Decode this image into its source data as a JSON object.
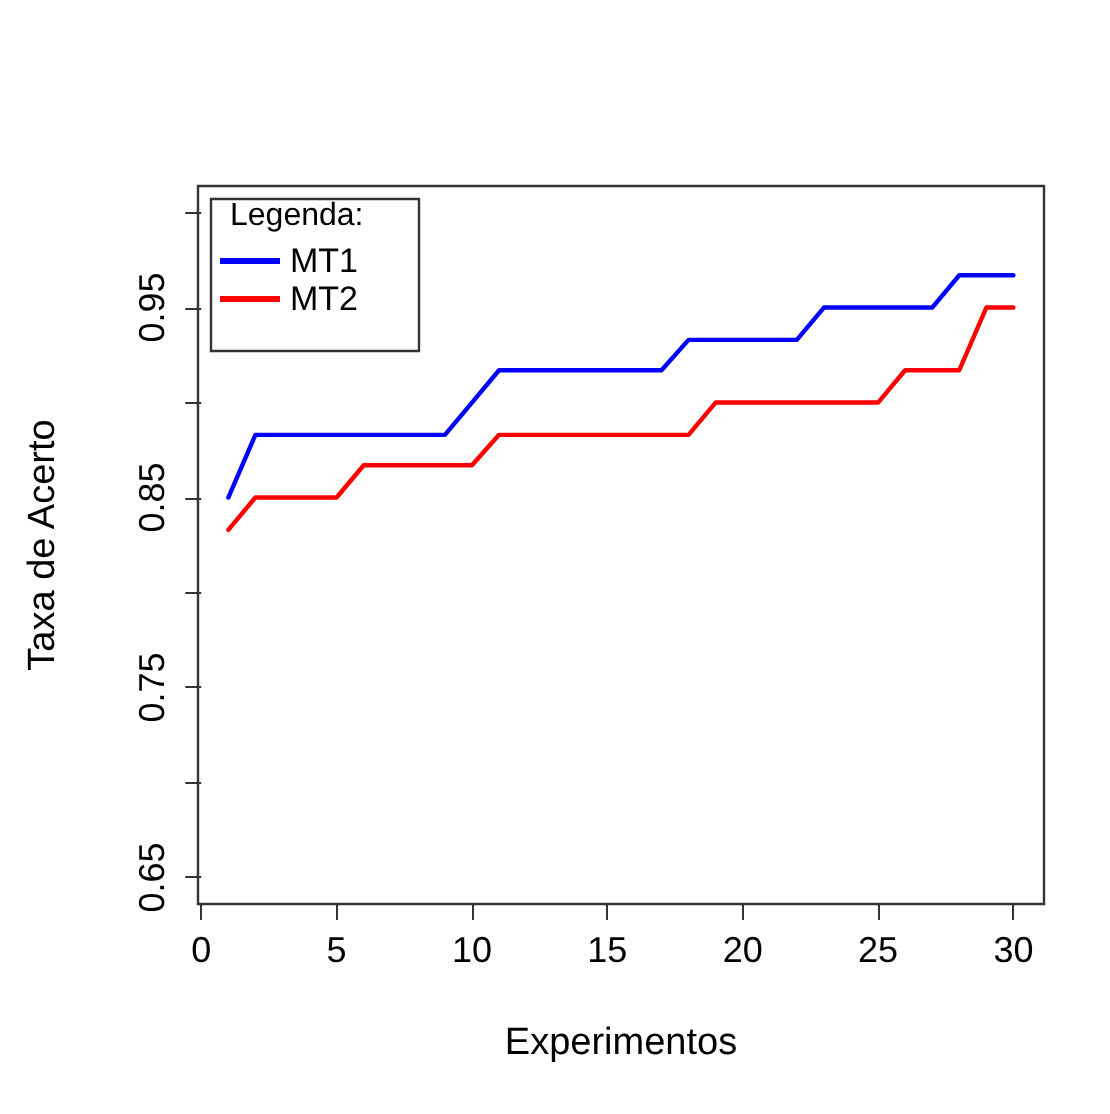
{
  "chart_data": {
    "type": "line",
    "xlabel": "Experimentos",
    "ylabel": "Taxa de Acerto",
    "legend_title": "Legenda:",
    "legend": "top left",
    "grid": false,
    "marker": "none",
    "line_style": "solid",
    "x": [
      1,
      2,
      3,
      4,
      5,
      6,
      7,
      8,
      9,
      10,
      11,
      12,
      13,
      14,
      15,
      16,
      17,
      18,
      19,
      20,
      21,
      22,
      23,
      24,
      25,
      26,
      27,
      28,
      29,
      30
    ],
    "series": [
      {
        "name": "MT1",
        "color": "#0000ff",
        "values": [
          0.85,
          0.883,
          0.883,
          0.883,
          0.883,
          0.883,
          0.883,
          0.883,
          0.883,
          0.9,
          0.917,
          0.917,
          0.917,
          0.917,
          0.917,
          0.917,
          0.917,
          0.933,
          0.933,
          0.933,
          0.933,
          0.933,
          0.95,
          0.95,
          0.95,
          0.95,
          0.95,
          0.967,
          0.967,
          0.967
        ]
      },
      {
        "name": "MT2",
        "color": "#ff0000",
        "values": [
          0.833,
          0.85,
          0.85,
          0.85,
          0.85,
          0.867,
          0.867,
          0.867,
          0.867,
          0.867,
          0.883,
          0.883,
          0.883,
          0.883,
          0.883,
          0.883,
          0.883,
          0.883,
          0.9,
          0.9,
          0.9,
          0.9,
          0.9,
          0.9,
          0.9,
          0.917,
          0.917,
          0.917,
          0.95,
          0.95
        ]
      }
    ],
    "xlim": [
      -0.12,
      31.13
    ],
    "xticks": [
      0,
      5,
      10,
      15,
      20,
      25,
      30
    ],
    "ylim": [
      0.636,
      1.014
    ],
    "yticks": [
      0.65,
      {
        "value": 0.7,
        "label": null
      },
      0.75,
      {
        "value": 0.8,
        "label": null
      },
      0.85,
      {
        "value": 0.9,
        "label": null
      },
      0.95,
      {
        "value": 1.0,
        "label": null
      }
    ]
  }
}
